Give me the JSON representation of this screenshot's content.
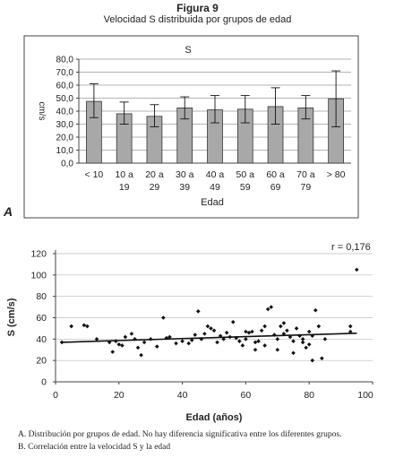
{
  "figure": {
    "title": "Figura 9",
    "subtitle": "Velocidad S distribuida por grupos de edad"
  },
  "panel_a_label": "A",
  "captions": [
    "A. Distribución por grupos de edad. No hay diferencia significativa entre los diferentes grupos.",
    "B. Correlación entre la velocidad S y la edad"
  ],
  "chart_data": [
    {
      "type": "bar",
      "title": "S",
      "xlabel": "Edad",
      "ylabel": "cm/s",
      "ylim": [
        0,
        80
      ],
      "yticks": [
        "0,0",
        "10,0",
        "20,0",
        "30,0",
        "40,0",
        "50,0",
        "60,0",
        "70,0",
        "80,0"
      ],
      "grid": true,
      "categories": [
        [
          "< 10",
          ""
        ],
        [
          "10 a",
          "19"
        ],
        [
          "20 a",
          "29"
        ],
        [
          "30 a",
          "39"
        ],
        [
          "40 a",
          "49"
        ],
        [
          "50 a",
          "59"
        ],
        [
          "60 a",
          "69"
        ],
        [
          "70 a",
          "79"
        ],
        [
          "> 80",
          ""
        ]
      ],
      "values": [
        47.5,
        38,
        36,
        42.5,
        41,
        41.5,
        43.5,
        42.5,
        49.5
      ],
      "error_low": [
        35,
        30,
        28,
        34,
        31,
        31,
        30,
        34,
        28
      ],
      "error_high": [
        61,
        47,
        45,
        51,
        52,
        52,
        58,
        52,
        71
      ],
      "bar_color": "#a8a8a8"
    },
    {
      "type": "scatter",
      "xlabel": "Edad (años)",
      "ylabel": "S (cm/s)",
      "xlim": [
        0,
        100
      ],
      "ylim": [
        0,
        120
      ],
      "xticks": [
        "0",
        "20",
        "40",
        "60",
        "80",
        "100"
      ],
      "yticks": [
        "0",
        "20",
        "40",
        "60",
        "80",
        "100",
        "120"
      ],
      "annotation": "r = 0,176",
      "trendline": {
        "x": [
          2,
          95
        ],
        "y": [
          37,
          45.5
        ]
      },
      "points": [
        [
          2,
          37
        ],
        [
          5,
          52
        ],
        [
          9,
          53
        ],
        [
          10,
          52
        ],
        [
          13,
          40
        ],
        [
          17,
          37
        ],
        [
          18,
          28
        ],
        [
          19,
          38
        ],
        [
          20,
          35
        ],
        [
          21,
          34
        ],
        [
          22,
          42
        ],
        [
          24,
          45
        ],
        [
          25,
          40
        ],
        [
          26,
          32
        ],
        [
          27,
          25
        ],
        [
          28,
          37
        ],
        [
          30,
          40
        ],
        [
          32,
          33
        ],
        [
          34,
          60
        ],
        [
          35,
          41
        ],
        [
          36,
          42
        ],
        [
          38,
          36
        ],
        [
          40,
          38
        ],
        [
          42,
          36
        ],
        [
          43,
          39
        ],
        [
          44,
          44
        ],
        [
          45,
          66
        ],
        [
          46,
          40
        ],
        [
          47,
          45
        ],
        [
          48,
          52
        ],
        [
          49,
          50
        ],
        [
          50,
          48
        ],
        [
          51,
          37
        ],
        [
          52,
          43
        ],
        [
          53,
          40
        ],
        [
          54,
          46
        ],
        [
          55,
          42
        ],
        [
          56,
          56
        ],
        [
          57,
          41
        ],
        [
          58,
          38
        ],
        [
          59,
          34
        ],
        [
          60,
          40
        ],
        [
          61,
          46
        ],
        [
          62,
          47
        ],
        [
          63,
          30
        ],
        [
          64,
          38
        ],
        [
          65,
          48
        ],
        [
          66,
          52
        ],
        [
          67,
          68
        ],
        [
          68,
          70
        ],
        [
          69,
          44
        ],
        [
          70,
          40
        ],
        [
          70,
          30
        ],
        [
          71,
          52
        ],
        [
          72,
          45
        ],
        [
          73,
          48
        ],
        [
          74,
          42
        ],
        [
          75,
          38
        ],
        [
          76,
          50
        ],
        [
          77,
          43
        ],
        [
          78,
          37
        ],
        [
          79,
          32
        ],
        [
          80,
          47
        ],
        [
          80,
          35
        ],
        [
          81,
          20
        ],
        [
          81,
          43
        ],
        [
          82,
          67
        ],
        [
          83,
          52
        ],
        [
          84,
          22
        ],
        [
          85,
          40
        ],
        [
          63,
          37
        ],
        [
          66,
          34
        ],
        [
          72,
          55
        ],
        [
          75,
          27
        ],
        [
          78,
          40
        ],
        [
          60,
          47
        ],
        [
          93,
          52
        ],
        [
          93,
          47
        ],
        [
          95,
          105
        ]
      ]
    }
  ]
}
